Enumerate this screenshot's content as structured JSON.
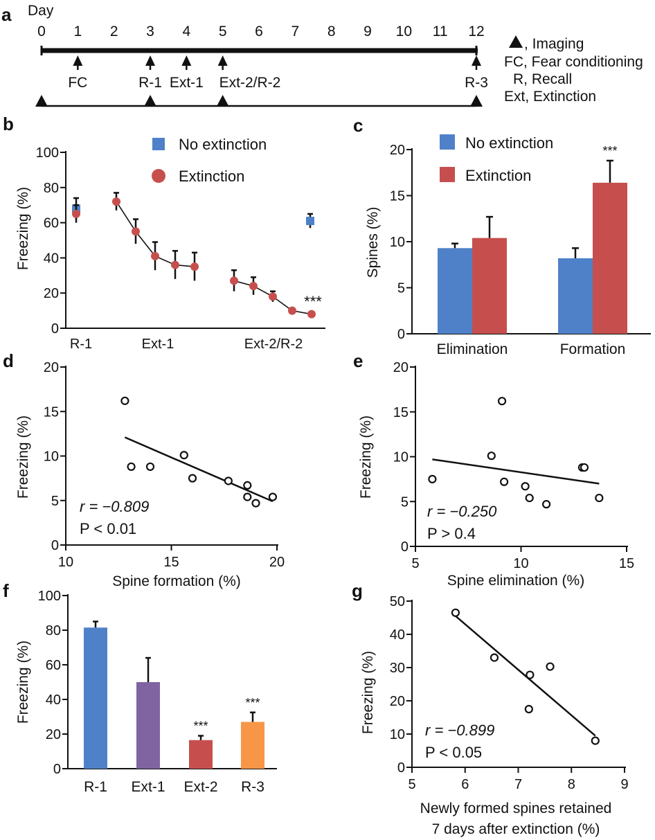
{
  "colors": {
    "blue": "#4f81c8",
    "red": "#c64f4d",
    "purple": "#8064a2",
    "orange": "#f79646",
    "ink": "#111111"
  },
  "panel_labels": [
    "a",
    "b",
    "c",
    "d",
    "e",
    "f",
    "g"
  ],
  "timeline": {
    "day_label": "Day",
    "days": [
      0,
      1,
      2,
      3,
      4,
      5,
      6,
      7,
      8,
      9,
      10,
      11,
      12
    ],
    "event_arrows": [
      1,
      3,
      4,
      5,
      12
    ],
    "event_labels": [
      {
        "day": 1,
        "text": "FC"
      },
      {
        "day": 3,
        "text": "R-1"
      },
      {
        "day": 4,
        "text": "Ext-1"
      },
      {
        "day": 5,
        "text": "Ext-2/R-2"
      },
      {
        "day": 12,
        "text": "R-3"
      }
    ],
    "imaging_days": [
      0,
      3,
      5,
      12
    ],
    "legend": [
      {
        "symbol": "triangle",
        "text": ", Imaging"
      },
      {
        "text": "FC, Fear conditioning"
      },
      {
        "text": "R, Recall"
      },
      {
        "text": "Ext, Extinction"
      }
    ]
  },
  "chart_data": [
    {
      "panel": "b",
      "type": "line",
      "ylabel": "Freezing  (%)",
      "ylim": [
        0,
        100
      ],
      "yticks": [
        0,
        20,
        40,
        60,
        80,
        100
      ],
      "group_labels": [
        "R-1",
        "Ext-1",
        "Ext-2/R-2"
      ],
      "legend": [
        "No extinction",
        "Extinction"
      ],
      "series": [
        {
          "name": "No extinction",
          "marker": "square",
          "points": [
            {
              "group": "R-1",
              "y": 68,
              "err": 6
            },
            {
              "group": "R-2",
              "y": 61,
              "err": 4
            }
          ]
        },
        {
          "name": "Extinction",
          "marker": "circle",
          "points": [
            {
              "group": "R-1",
              "y": 65,
              "err": 5
            }
          ]
        },
        {
          "name": "Extinction",
          "marker": "circle",
          "connected": true,
          "points": [
            {
              "group": "Ext-1",
              "y": 72,
              "err": 5
            },
            {
              "group": "Ext-1",
              "y": 55,
              "err": 7
            },
            {
              "group": "Ext-1",
              "y": 41,
              "err": 8
            },
            {
              "group": "Ext-1",
              "y": 36,
              "err": 8
            },
            {
              "group": "Ext-1",
              "y": 35,
              "err": 8
            }
          ]
        },
        {
          "name": "Extinction",
          "marker": "circle",
          "connected": true,
          "points": [
            {
              "group": "Ext-2/R-2",
              "y": 27,
              "err": 6
            },
            {
              "group": "Ext-2/R-2",
              "y": 24,
              "err": 5
            },
            {
              "group": "Ext-2/R-2",
              "y": 18,
              "err": 3
            },
            {
              "group": "Ext-2/R-2",
              "y": 10,
              "err": 1
            },
            {
              "group": "Ext-2/R-2",
              "y": 8,
              "err": 1
            }
          ]
        }
      ],
      "annotations": [
        {
          "text": "***"
        }
      ]
    },
    {
      "panel": "c",
      "type": "bar",
      "ylabel": "Spines  (%)",
      "ylim": [
        0,
        20
      ],
      "yticks": [
        0,
        5,
        10,
        15,
        20
      ],
      "categories": [
        "Elimination",
        "Formation"
      ],
      "legend": [
        "No extinction",
        "Extinction"
      ],
      "series": [
        {
          "name": "No extinction",
          "values": [
            9.3,
            8.2
          ],
          "errors": [
            0.5,
            1.1
          ]
        },
        {
          "name": "Extinction",
          "values": [
            10.4,
            16.4
          ],
          "errors": [
            2.3,
            2.4
          ]
        }
      ],
      "annotations": [
        {
          "text": "***"
        }
      ]
    },
    {
      "panel": "d",
      "type": "scatter",
      "xlabel": "Spine formation  (%)",
      "ylabel": "Freezing  (%)",
      "xlim": [
        10,
        20
      ],
      "ylim": [
        0,
        20
      ],
      "xticks": [
        10,
        15,
        20
      ],
      "yticks": [
        0,
        5,
        10,
        15,
        20
      ],
      "points": [
        [
          12.8,
          16.2
        ],
        [
          13.1,
          8.8
        ],
        [
          14.0,
          8.8
        ],
        [
          15.6,
          10.1
        ],
        [
          16.0,
          7.5
        ],
        [
          17.7,
          7.2
        ],
        [
          18.6,
          6.7
        ],
        [
          18.6,
          5.4
        ],
        [
          19.0,
          4.7
        ],
        [
          19.8,
          5.4
        ]
      ],
      "fit": [
        [
          12.8,
          12.1
        ],
        [
          19.8,
          4.9
        ]
      ],
      "stats": {
        "r": "r = −0.809",
        "p": "P < 0.01"
      }
    },
    {
      "panel": "e",
      "type": "scatter",
      "xlabel": "Spine elimination  (%)",
      "ylabel": "Freezing  (%)",
      "xlim": [
        5,
        15
      ],
      "ylim": [
        0,
        20
      ],
      "xticks": [
        5,
        10,
        15
      ],
      "yticks": [
        0,
        5,
        10,
        15,
        20
      ],
      "points": [
        [
          5.8,
          7.5
        ],
        [
          8.6,
          10.1
        ],
        [
          9.1,
          16.2
        ],
        [
          9.2,
          7.2
        ],
        [
          10.2,
          6.7
        ],
        [
          10.4,
          5.4
        ],
        [
          11.2,
          4.7
        ],
        [
          12.9,
          8.8
        ],
        [
          13.0,
          8.8
        ],
        [
          13.7,
          5.4
        ]
      ],
      "fit": [
        [
          5.8,
          9.7
        ],
        [
          13.7,
          7.0
        ]
      ],
      "stats": {
        "r": "r = −0.250",
        "p": "P > 0.4"
      }
    },
    {
      "panel": "f",
      "type": "bar",
      "ylabel": "Freezing  (%)",
      "ylim": [
        0,
        100
      ],
      "yticks": [
        0,
        20,
        40,
        60,
        80,
        100
      ],
      "categories": [
        "R-1",
        "Ext-1",
        "Ext-2",
        "R-3"
      ],
      "values": [
        81.5,
        50,
        16.5,
        27
      ],
      "errors": [
        3.5,
        14,
        2.5,
        5.5
      ],
      "bar_colors": [
        "#4f81c8",
        "#8064a2",
        "#c64f4d",
        "#f79646"
      ],
      "annotations": [
        {
          "category": "Ext-2",
          "text": "***"
        },
        {
          "category": "R-3",
          "text": "***"
        }
      ]
    },
    {
      "panel": "g",
      "type": "scatter",
      "xlabel": "Newly formed spines retained",
      "xlabel2": "7 days after extinction  (%)",
      "ylabel": "Freezing  (%)",
      "xlim": [
        5,
        9
      ],
      "ylim": [
        0,
        50
      ],
      "xticks": [
        5,
        6,
        7,
        8,
        9
      ],
      "yticks": [
        0,
        10,
        20,
        30,
        40,
        50
      ],
      "points": [
        [
          5.82,
          46.5
        ],
        [
          6.55,
          33
        ],
        [
          7.22,
          27.8
        ],
        [
          7.2,
          17.5
        ],
        [
          7.6,
          30.3
        ],
        [
          8.45,
          8
        ]
      ],
      "fit": [
        [
          5.82,
          45.5
        ],
        [
          8.45,
          9.5
        ]
      ],
      "stats": {
        "r": "r = −0.899",
        "p": "P < 0.05"
      }
    }
  ]
}
